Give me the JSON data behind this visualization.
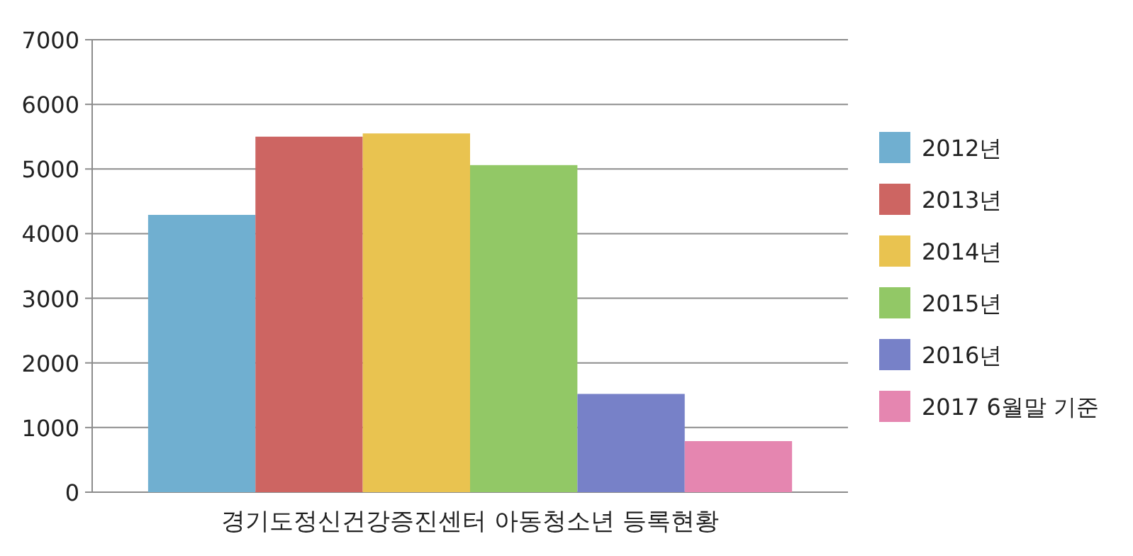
{
  "chart_data": {
    "type": "bar",
    "categories": [
      "경기도정신건강증진센터 아동청소년 등록현황"
    ],
    "series": [
      {
        "name": "2012년",
        "color": "#70afd0",
        "values": [
          4290
        ]
      },
      {
        "name": "2013년",
        "color": "#cd6562",
        "values": [
          5500
        ]
      },
      {
        "name": "2014년",
        "color": "#e9c350",
        "values": [
          5550
        ]
      },
      {
        "name": "2015년",
        "color": "#92c866",
        "values": [
          5060
        ]
      },
      {
        "name": "2016년",
        "color": "#7781c8",
        "values": [
          1520
        ]
      },
      {
        "name": "2017 6월말 기준",
        "color": "#e586b0",
        "values": [
          790
        ]
      }
    ],
    "ylim": [
      0,
      7000
    ],
    "yticks": [
      0,
      1000,
      2000,
      3000,
      4000,
      5000,
      6000,
      7000
    ],
    "grid": "y",
    "legend": "right"
  }
}
